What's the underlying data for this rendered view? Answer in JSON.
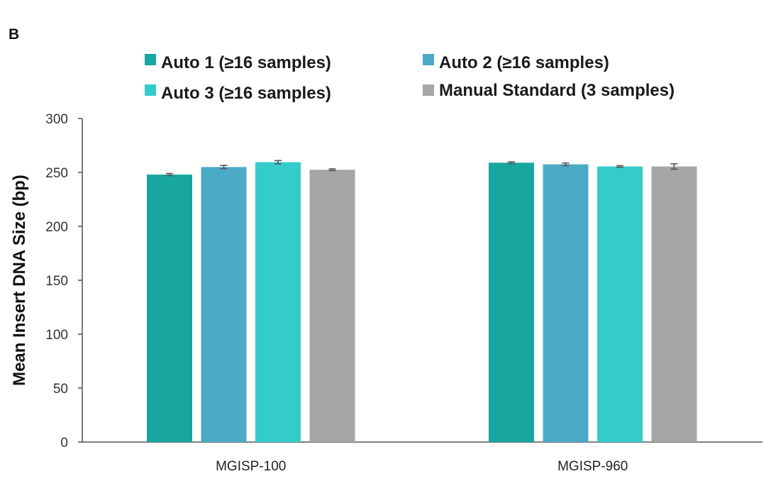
{
  "chart_data": {
    "type": "bar",
    "panel_label": "B",
    "title": "",
    "xlabel": "",
    "ylabel": "Mean Insert DNA Size (bp)",
    "ylim": [
      0,
      300
    ],
    "yticks": [
      0,
      50,
      100,
      150,
      200,
      250,
      300
    ],
    "categories": [
      "MGISP-100",
      "MGISP-960"
    ],
    "grid": false,
    "legend_position": "top",
    "series": [
      {
        "name": "Auto 1 (≥16 samples)",
        "color": "#17A6A0",
        "values": [
          248,
          259
        ],
        "errors": [
          1,
          0.8
        ]
      },
      {
        "name": "Auto 2 (≥16 samples)",
        "color": "#4BABC6",
        "values": [
          255,
          257.5
        ],
        "errors": [
          1.5,
          1.2
        ]
      },
      {
        "name": "Auto 3 (≥16 samples)",
        "color": "#33CCCB",
        "values": [
          259.5,
          255.5
        ],
        "errors": [
          1.5,
          0.8
        ]
      },
      {
        "name": "Manual Standard (3 samples)",
        "color": "#A6A6A6",
        "values": [
          252.5,
          255.5
        ],
        "errors": [
          0.8,
          2.5
        ]
      }
    ]
  }
}
